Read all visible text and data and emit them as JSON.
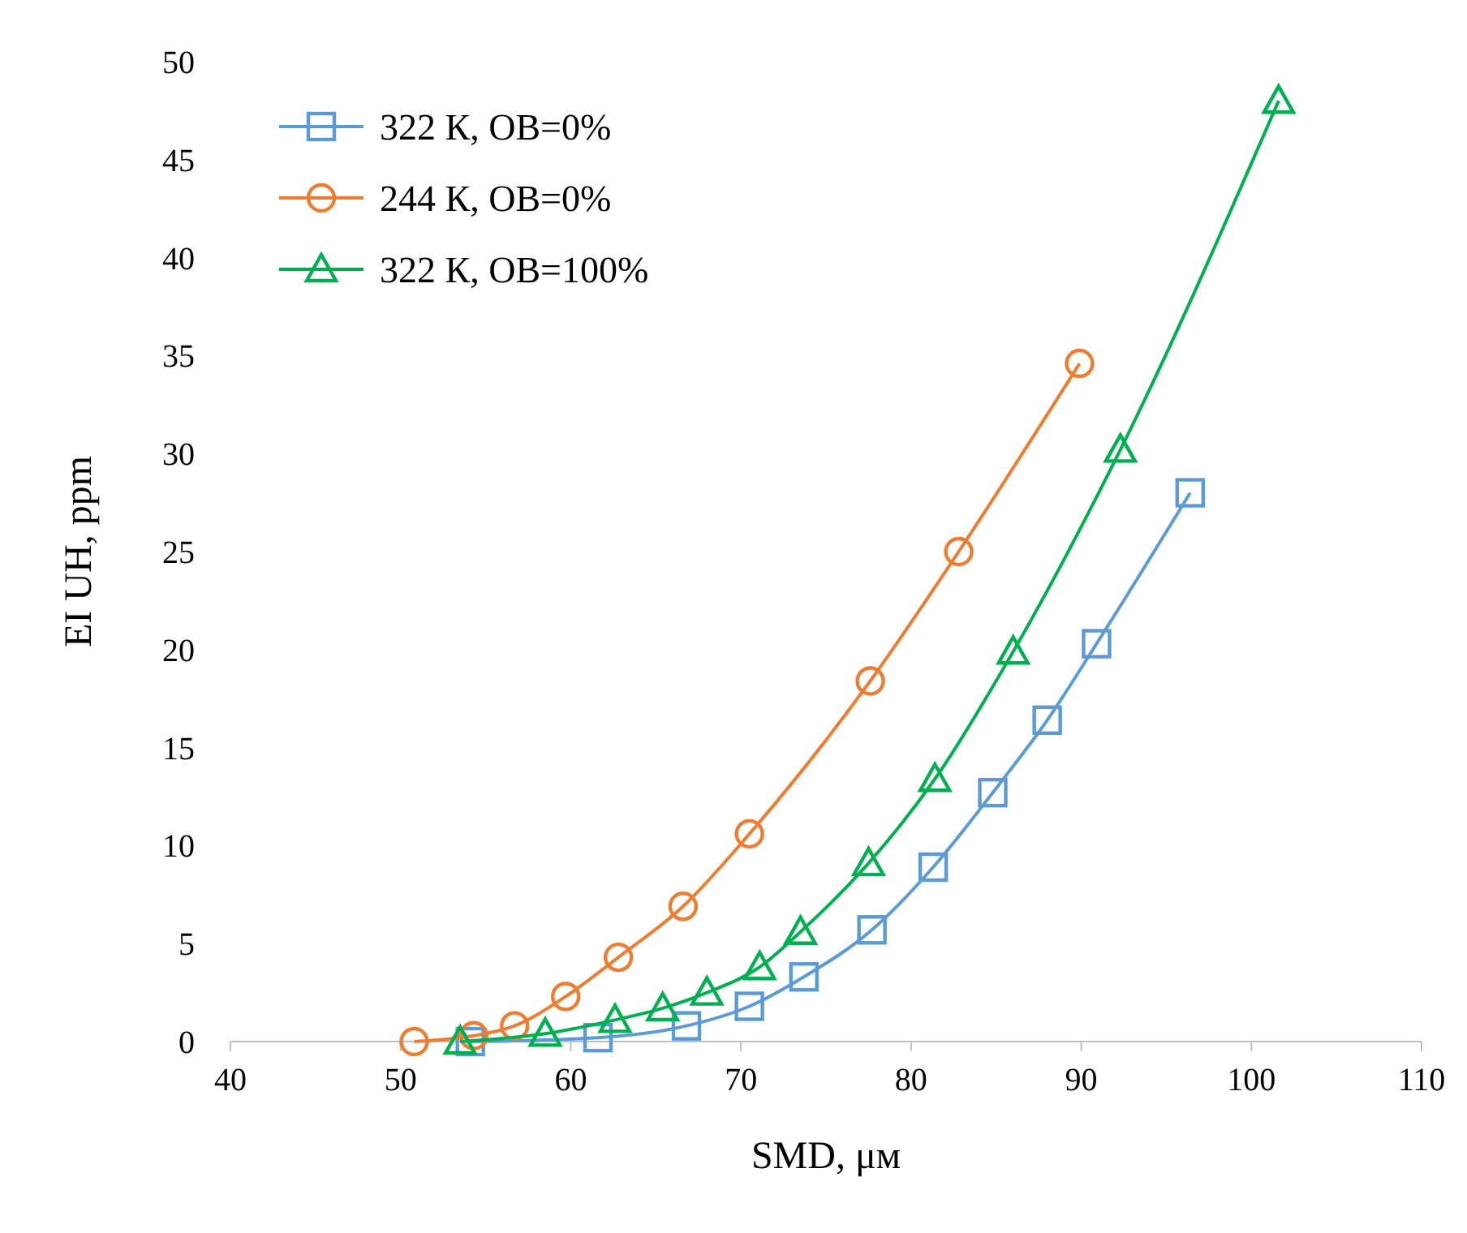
{
  "chart_data": {
    "type": "line",
    "xlabel": "SMD, μм",
    "ylabel": "EI UH, ppm",
    "xlim": [
      40,
      110
    ],
    "xticks": [
      40,
      50,
      60,
      70,
      80,
      90,
      100,
      110
    ],
    "ylim": [
      0,
      50
    ],
    "yticks": [
      0,
      5,
      10,
      15,
      20,
      25,
      30,
      35,
      40,
      45,
      50
    ],
    "grid": false,
    "legend": "top left",
    "series": [
      {
        "name": "322 К, OB=0%",
        "color": "#5b9bd5",
        "marker": "square",
        "x": [
          54.1,
          61.6,
          66.8,
          70.5,
          73.7,
          77.7,
          81.3,
          84.8,
          88.0,
          90.9,
          96.4
        ],
        "values": [
          0,
          0.2,
          0.8,
          1.8,
          3.3,
          5.7,
          8.9,
          12.7,
          16.4,
          20.3,
          28.0
        ]
      },
      {
        "name": "244 К, OB=0%",
        "color": "#ed7d31",
        "marker": "circle",
        "x": [
          50.8,
          54.3,
          56.7,
          59.7,
          62.8,
          66.6,
          70.5,
          77.6,
          82.8,
          89.9
        ],
        "values": [
          0,
          0.3,
          0.8,
          2.3,
          4.3,
          6.9,
          10.6,
          18.4,
          25.0,
          34.6
        ]
      },
      {
        "name": "322 К, OB=100%",
        "color": "#00b050",
        "marker": "triangle",
        "x": [
          53.5,
          58.5,
          62.6,
          65.4,
          68.0,
          71.1,
          73.5,
          77.5,
          81.4,
          86.0,
          92.3,
          101.6
        ],
        "values": [
          0,
          0.4,
          1.1,
          1.7,
          2.5,
          3.8,
          5.6,
          9.1,
          13.4,
          19.9,
          30.2,
          48.0
        ]
      }
    ]
  }
}
